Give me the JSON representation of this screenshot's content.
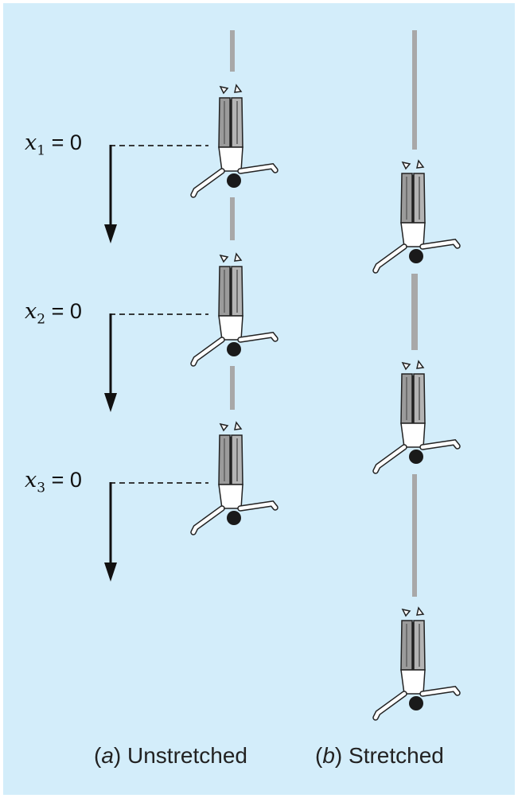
{
  "equations": [
    {
      "var": "x",
      "sub": "1",
      "rest": " = 0"
    },
    {
      "var": "x",
      "sub": "2",
      "rest": " = 0"
    },
    {
      "var": "x",
      "sub": "3",
      "rest": " = 0"
    }
  ],
  "captions": {
    "a": {
      "open": "(",
      "letter": "a",
      "close": ")",
      "text": " Unstretched"
    },
    "b": {
      "open": "(",
      "letter": "b",
      "close": ")",
      "text": " Stretched"
    }
  },
  "colors": {
    "background": "#d3edfa",
    "cord": "#a8a8a8",
    "arrow": "#111111",
    "trousers": "#9a9a9a",
    "outline": "#222222"
  }
}
